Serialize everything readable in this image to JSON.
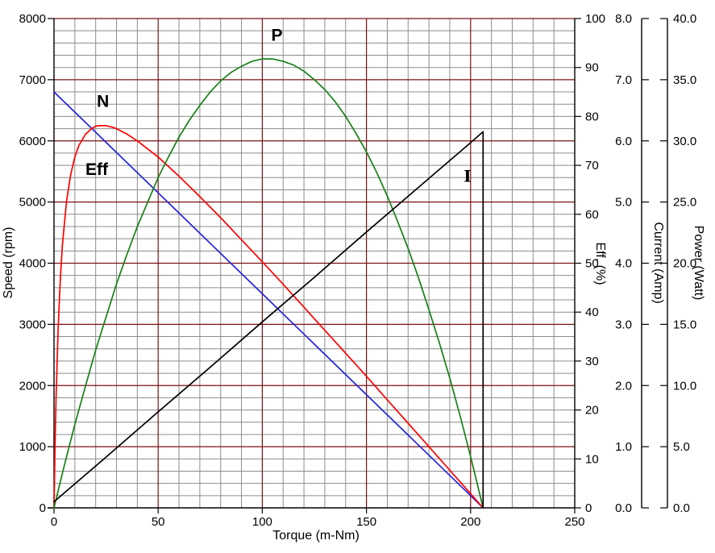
{
  "chart_data": {
    "type": "line",
    "title": "",
    "background": "#ffffff",
    "grid": {
      "minor_color": "#8c8c8c",
      "major_color": "#7b1114",
      "x_minor_step": 10,
      "x_major_step": 50,
      "speed_minor_step": 200,
      "speed_major_step": 1000
    },
    "x_axis": {
      "label": "Torque (m-Nm)",
      "min": 0,
      "max": 250,
      "tick_values": [
        0,
        50,
        100,
        150,
        200,
        250
      ],
      "tick_labels": [
        "0",
        "50",
        "100",
        "150",
        "200",
        "250"
      ]
    },
    "axes": {
      "speed": {
        "label": "Speed (rpm)",
        "color": "#000000",
        "min": 0,
        "max": 8000,
        "tick_values": [
          0,
          1000,
          2000,
          3000,
          4000,
          5000,
          6000,
          7000,
          8000
        ],
        "tick_labels": [
          "0",
          "1000",
          "2000",
          "3000",
          "4000",
          "5000",
          "6000",
          "7000",
          "8000"
        ]
      },
      "eff": {
        "label": "Eff, (%)",
        "color": "#ff0000",
        "min": 0,
        "max": 100,
        "tick_values": [
          0,
          10,
          20,
          30,
          40,
          50,
          60,
          70,
          80,
          90,
          100
        ],
        "tick_labels": [
          "0",
          "10",
          "20",
          "30",
          "40",
          "50",
          "60",
          "70",
          "80",
          "90",
          "100"
        ]
      },
      "current": {
        "label": "Current (Amp)",
        "color": "#000000",
        "min": 0,
        "max": 8,
        "tick_values": [
          0,
          1,
          2,
          3,
          4,
          5,
          6,
          7,
          8
        ],
        "tick_labels": [
          "0.0",
          "1.0",
          "2.0",
          "3.0",
          "4.0",
          "5.0",
          "6.0",
          "7.0",
          "8.0"
        ]
      },
      "power": {
        "label": "Power (Watt)",
        "color": "#178017",
        "min": 0,
        "max": 40,
        "tick_values": [
          0,
          5,
          10,
          15,
          20,
          25,
          30,
          35,
          40
        ],
        "tick_labels": [
          "0.0",
          "5.0",
          "10.0",
          "15.0",
          "20.0",
          "25.0",
          "30.0",
          "35.0",
          "40.0"
        ]
      }
    },
    "series": [
      {
        "label": "N",
        "axis": "speed",
        "color": "#2222dd",
        "label_at": [
          23.5,
          6560
        ],
        "points": [
          [
            0,
            6800
          ],
          [
            25,
            5975
          ],
          [
            50,
            5150
          ],
          [
            75,
            4325
          ],
          [
            100,
            3500
          ],
          [
            125,
            2675
          ],
          [
            150,
            1850
          ],
          [
            175,
            1025
          ],
          [
            200,
            200
          ],
          [
            206,
            0
          ]
        ]
      },
      {
        "label": "Eff",
        "axis": "eff",
        "color": "#ff0000",
        "label_at": [
          20.5,
          68
        ],
        "points": [
          [
            0,
            0
          ],
          [
            0.5,
            12.9
          ],
          [
            1,
            22.8
          ],
          [
            2,
            37.0
          ],
          [
            3,
            46.6
          ],
          [
            4,
            53.5
          ],
          [
            6,
            62.6
          ],
          [
            8,
            68.1
          ],
          [
            10,
            71.7
          ],
          [
            12,
            74.1
          ],
          [
            15,
            76.3
          ],
          [
            18,
            77.5
          ],
          [
            20,
            78.0
          ],
          [
            22,
            78.1
          ],
          [
            25,
            78.1
          ],
          [
            28,
            77.8
          ],
          [
            30,
            77.5
          ],
          [
            35,
            76.4
          ],
          [
            40,
            75.0
          ],
          [
            50,
            71.7
          ],
          [
            60,
            67.8
          ],
          [
            70,
            63.6
          ],
          [
            80,
            59.3
          ],
          [
            90,
            54.8
          ],
          [
            100,
            50.3
          ],
          [
            110,
            45.7
          ],
          [
            120,
            41.0
          ],
          [
            130,
            36.3
          ],
          [
            140,
            31.6
          ],
          [
            150,
            26.9
          ],
          [
            160,
            22.1
          ],
          [
            170,
            17.3
          ],
          [
            180,
            12.5
          ],
          [
            190,
            7.7
          ],
          [
            200,
            2.9
          ],
          [
            206,
            0
          ]
        ]
      },
      {
        "label": "P",
        "axis": "power",
        "color": "#178017",
        "label_at": [
          107,
          38.2
        ],
        "points": [
          [
            0,
            0
          ],
          [
            5,
            3.5
          ],
          [
            10,
            6.8
          ],
          [
            15,
            9.9
          ],
          [
            20,
            12.9
          ],
          [
            25,
            15.6
          ],
          [
            30,
            18.3
          ],
          [
            35,
            20.7
          ],
          [
            40,
            23.0
          ],
          [
            45,
            25.0
          ],
          [
            50,
            27.0
          ],
          [
            55,
            28.7
          ],
          [
            60,
            30.3
          ],
          [
            65,
            31.7
          ],
          [
            70,
            32.9
          ],
          [
            75,
            34.0
          ],
          [
            80,
            34.9
          ],
          [
            85,
            35.6
          ],
          [
            90,
            36.1
          ],
          [
            95,
            36.5
          ],
          [
            100,
            36.7
          ],
          [
            105,
            36.7
          ],
          [
            110,
            36.5
          ],
          [
            115,
            36.2
          ],
          [
            120,
            35.7
          ],
          [
            125,
            35.0
          ],
          [
            130,
            34.2
          ],
          [
            135,
            33.2
          ],
          [
            140,
            32.0
          ],
          [
            145,
            30.6
          ],
          [
            150,
            29.1
          ],
          [
            155,
            27.4
          ],
          [
            160,
            25.5
          ],
          [
            165,
            23.4
          ],
          [
            170,
            21.2
          ],
          [
            175,
            18.8
          ],
          [
            180,
            16.2
          ],
          [
            185,
            13.5
          ],
          [
            190,
            10.6
          ],
          [
            195,
            7.5
          ],
          [
            200,
            4.2
          ],
          [
            206,
            0
          ]
        ]
      },
      {
        "label": "I",
        "axis": "current",
        "color": "#000000",
        "label_at": [
          198.5,
          5.33
        ],
        "label_font": "serif",
        "points": [
          [
            0,
            0.1
          ],
          [
            25,
            0.83
          ],
          [
            50,
            1.57
          ],
          [
            75,
            2.3
          ],
          [
            100,
            3.04
          ],
          [
            125,
            3.77
          ],
          [
            150,
            4.51
          ],
          [
            175,
            5.24
          ],
          [
            200,
            5.97
          ],
          [
            206,
            6.15
          ],
          [
            206,
            0
          ]
        ]
      }
    ]
  }
}
